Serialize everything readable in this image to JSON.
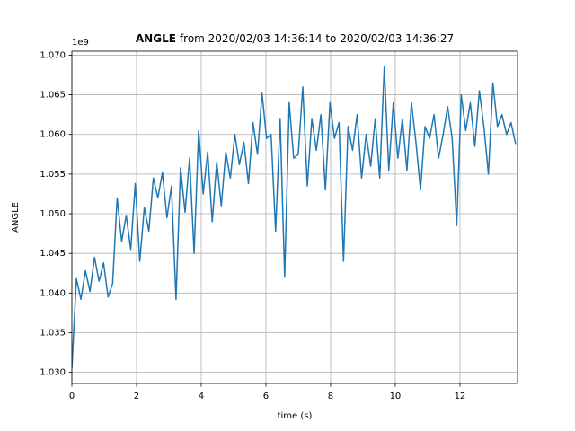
{
  "chart_data": {
    "type": "line",
    "title_bold": "ANGLE",
    "title": "from 2020/02/03 14:36:14 to 2020/02/03 14:36:27",
    "x_label": "time (s)",
    "y_label": "ANGLE",
    "y_offset_label": "1e9",
    "x": [
      0,
      0.14,
      0.28,
      0.42,
      0.56,
      0.7,
      0.84,
      0.98,
      1.12,
      1.26,
      1.4,
      1.54,
      1.68,
      1.82,
      1.96,
      2.1,
      2.24,
      2.38,
      2.52,
      2.66,
      2.8,
      2.94,
      3.08,
      3.22,
      3.36,
      3.5,
      3.64,
      3.78,
      3.92,
      4.06,
      4.2,
      4.34,
      4.48,
      4.62,
      4.76,
      4.9,
      5.04,
      5.18,
      5.32,
      5.46,
      5.6,
      5.74,
      5.88,
      6.02,
      6.16,
      6.3,
      6.44,
      6.58,
      6.72,
      6.86,
      7.0,
      7.14,
      7.28,
      7.42,
      7.56,
      7.7,
      7.84,
      7.98,
      8.12,
      8.26,
      8.4,
      8.54,
      8.68,
      8.82,
      8.96,
      9.1,
      9.24,
      9.38,
      9.52,
      9.66,
      9.8,
      9.94,
      10.08,
      10.22,
      10.36,
      10.5,
      10.64,
      10.78,
      10.92,
      11.06,
      11.2,
      11.34,
      11.48,
      11.62,
      11.76,
      11.9,
      12.04,
      12.18,
      12.32,
      12.46,
      12.6,
      12.74,
      12.88,
      13.02,
      13.16,
      13.3,
      13.44,
      13.58,
      13.72
    ],
    "series": [
      {
        "name": "ANGLE",
        "color": "#1f77b4",
        "values": [
          1.0305,
          1.0418,
          1.0392,
          1.0428,
          1.0402,
          1.0445,
          1.0415,
          1.0438,
          1.0395,
          1.0412,
          1.052,
          1.0465,
          1.0498,
          1.0455,
          1.0538,
          1.044,
          1.0508,
          1.0478,
          1.0545,
          1.052,
          1.0552,
          1.0495,
          1.0535,
          1.0392,
          1.0558,
          1.0502,
          1.057,
          1.045,
          1.0605,
          1.0525,
          1.0578,
          1.049,
          1.0565,
          1.051,
          1.0578,
          1.0545,
          1.06,
          1.0562,
          1.059,
          1.0538,
          1.0615,
          1.0575,
          1.0652,
          1.0595,
          1.06,
          1.0478,
          1.062,
          1.042,
          1.064,
          1.057,
          1.0575,
          1.066,
          1.0535,
          1.062,
          1.058,
          1.0625,
          1.053,
          1.064,
          1.0595,
          1.0615,
          1.044,
          1.061,
          1.058,
          1.0625,
          1.0545,
          1.06,
          1.056,
          1.062,
          1.0545,
          1.0685,
          1.0555,
          1.064,
          1.057,
          1.062,
          1.0555,
          1.064,
          1.059,
          1.053,
          1.061,
          1.0595,
          1.0625,
          1.057,
          1.06,
          1.0635,
          1.0595,
          1.0485,
          1.065,
          1.0605,
          1.064,
          1.0585,
          1.0655,
          1.061,
          1.055,
          1.0665,
          1.061,
          1.0625,
          1.06,
          1.0615,
          1.0588
        ]
      }
    ],
    "xlim": [
      0,
      13.78
    ],
    "ylim": [
      1.0286,
      1.0705
    ],
    "xticks": [
      0,
      2,
      4,
      6,
      8,
      10,
      12
    ],
    "yticks": [
      {
        "value": 1.03,
        "label": "1.030"
      },
      {
        "value": 1.035,
        "label": "1.035"
      },
      {
        "value": 1.04,
        "label": "1.040"
      },
      {
        "value": 1.045,
        "label": "1.045"
      },
      {
        "value": 1.05,
        "label": "1.050"
      },
      {
        "value": 1.055,
        "label": "1.055"
      },
      {
        "value": 1.06,
        "label": "1.060"
      },
      {
        "value": 1.065,
        "label": "1.065"
      },
      {
        "value": 1.07,
        "label": "1.070"
      }
    ],
    "grid": true
  }
}
